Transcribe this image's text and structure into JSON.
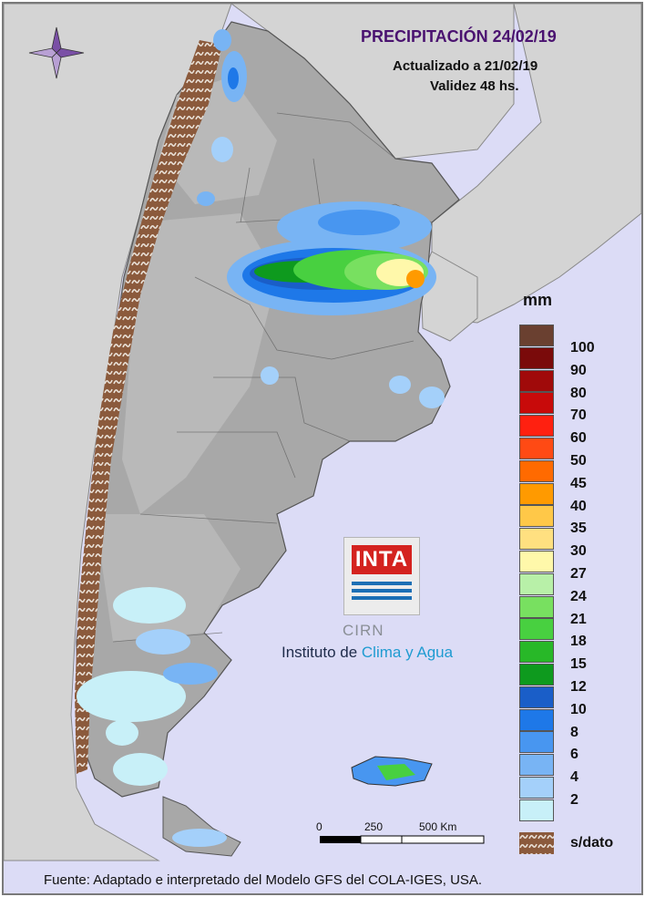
{
  "header": {
    "title": "PRECIPITACIÓN 24/02/19",
    "updated": "Actualizado a 21/02/19",
    "validity": "Validez 48 hs."
  },
  "legend": {
    "unit": "mm",
    "items": [
      {
        "label": "100",
        "color": "#6a4030"
      },
      {
        "label": "90",
        "color": "#7a0a0a"
      },
      {
        "label": "80",
        "color": "#a00a0a"
      },
      {
        "label": "70",
        "color": "#c80a0a"
      },
      {
        "label": "60",
        "color": "#ff2010"
      },
      {
        "label": "50",
        "color": "#ff4a14"
      },
      {
        "label": "45",
        "color": "#ff6a00"
      },
      {
        "label": "40",
        "color": "#ff9a00"
      },
      {
        "label": "35",
        "color": "#ffc848"
      },
      {
        "label": "30",
        "color": "#ffe080"
      },
      {
        "label": "27",
        "color": "#fff8aa"
      },
      {
        "label": "24",
        "color": "#b8f0a8"
      },
      {
        "label": "21",
        "color": "#78e060"
      },
      {
        "label": "18",
        "color": "#48d040"
      },
      {
        "label": "15",
        "color": "#28b828"
      },
      {
        "label": "12",
        "color": "#0e9a1e"
      },
      {
        "label": "10",
        "color": "#1a5ec8"
      },
      {
        "label": "8",
        "color": "#1e78e8"
      },
      {
        "label": "6",
        "color": "#4896f0"
      },
      {
        "label": "4",
        "color": "#78b4f4"
      },
      {
        "label": "2",
        "color": "#a4d0fa"
      },
      {
        "label": "",
        "color": "#c8f0f8"
      }
    ],
    "no_data_label": "s/dato",
    "no_data_color": "#8b5a3c"
  },
  "scale_bar": {
    "ticks": [
      "0",
      "250",
      "500 Km"
    ]
  },
  "logo": {
    "inta": "INTA",
    "cirn": "CIRN",
    "institute_prefix": "Instituto de",
    "institute_highlight": "Clima y Agua"
  },
  "footer": {
    "source": "Fuente: Adaptado e interpretado del Modelo GFS del COLA-IGES, USA."
  },
  "map": {
    "ocean_color": "#dcdcf6",
    "land_color": "#a8a8a8",
    "terrain_color": "#bdbdbd",
    "neighbor_color": "#d4d4d4",
    "rain_band_colors": [
      "#4896f0",
      "#1e78e8",
      "#0e9a1e",
      "#48d040",
      "#fff8aa",
      "#ff9a00"
    ]
  }
}
